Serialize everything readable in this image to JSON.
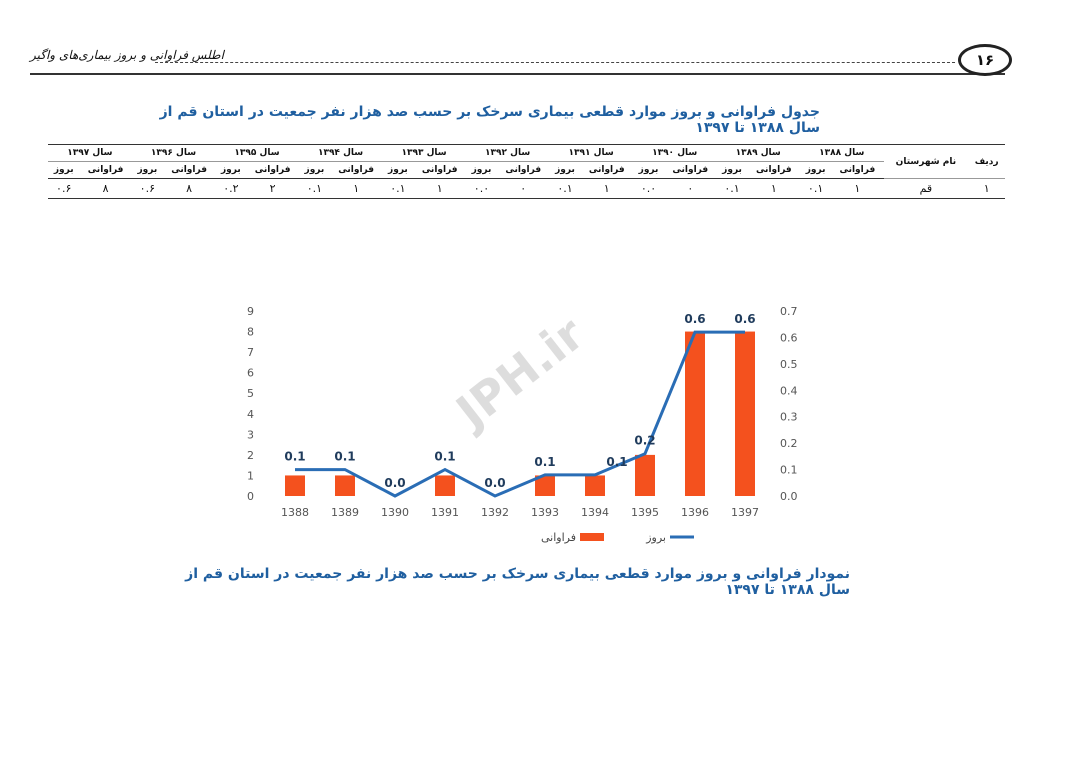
{
  "header": {
    "page_number": "۱۶",
    "running_title": "اطلس فراوانی و بروز بیماری‌های واگیر"
  },
  "table": {
    "title": "جدول فراوانی و بروز موارد قطعی بیماری سرخک بر حسب صد هزار نفر جمعیت در استان قم از  سال ۱۳۸۸ تا ۱۳۹۷",
    "row_no": "ردیف",
    "county": "نام شهرستان",
    "years": [
      "سال ۱۳۸۸",
      "سال ۱۳۸۹",
      "سال ۱۳۹۰",
      "سال ۱۳۹۱",
      "سال ۱۳۹۲",
      "سال ۱۳۹۳",
      "سال ۱۳۹۴",
      "سال ۱۳۹۵",
      "سال ۱۳۹۶",
      "سال ۱۳۹۷"
    ],
    "subheaders": [
      "فراوانی",
      "بروز"
    ],
    "rows": [
      [
        "۱",
        "قم",
        "۱",
        "۰.۱",
        "۱",
        "۰.۱",
        "۰",
        "۰.۰",
        "۱",
        "۰.۱",
        "۰",
        "۰.۰",
        "۱",
        "۰.۱",
        "۱",
        "۰.۱",
        "۲",
        "۰.۲",
        "۸",
        "۰.۶",
        "۸",
        "۰.۶"
      ]
    ]
  },
  "chart_data": {
    "type": "combo",
    "watermark": "JPH.ir",
    "categories": [
      "1388",
      "1389",
      "1390",
      "1391",
      "1392",
      "1393",
      "1394",
      "1395",
      "1396",
      "1397"
    ],
    "series": [
      {
        "name": "فراوانی",
        "type": "bar",
        "color": "#f4511e",
        "values": [
          1,
          1,
          0,
          1,
          0,
          1,
          1,
          2,
          8,
          8
        ]
      },
      {
        "name": "بروز",
        "type": "line",
        "color": "#2a6db5",
        "axis": "y2",
        "values": [
          0.1,
          0.1,
          0,
          0.1,
          0,
          0.08,
          0.08,
          0.16,
          0.62,
          0.62
        ],
        "value_labels": [
          "0.1",
          "0.1",
          "0.0",
          "0.1",
          "0.0",
          "0.1",
          "0.1",
          "0.2",
          "0.6",
          "0.6"
        ]
      }
    ],
    "ylim": [
      0,
      9
    ],
    "yticks": [
      0,
      1,
      2,
      3,
      4,
      5,
      6,
      7,
      8,
      9
    ],
    "y2lim": [
      0,
      0.7
    ],
    "y2ticks": [
      {
        "value": 0,
        "label": "0.0"
      },
      0.1,
      0.2,
      0.3,
      0.4,
      0.5,
      0.6,
      0.7
    ]
  },
  "caption": "نمودار فراوانی و بروز موارد قطعی بیماری سرخک بر حسب صد هزار نفر جمعیت در استان قم از  سال ۱۳۸۸ تا ۱۳۹۷"
}
